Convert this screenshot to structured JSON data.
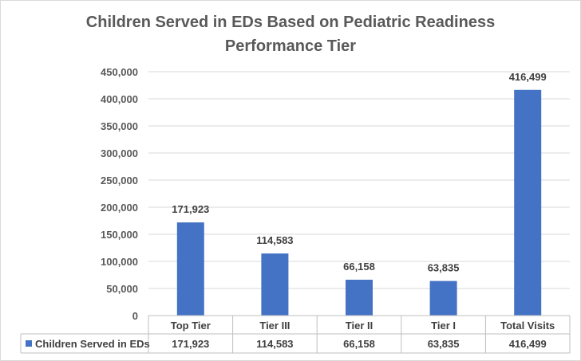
{
  "chart_data": {
    "type": "bar",
    "title_line1": "Children Served in EDs Based on Pediatric Readiness",
    "title_line2": "Performance Tier",
    "categories": [
      "Top Tier",
      "Tier III",
      "Tier II",
      "Tier I",
      "Total Visits"
    ],
    "series": [
      {
        "name": "Children Served in EDs",
        "values": [
          171923,
          114583,
          66158,
          63835,
          416499
        ],
        "value_labels": [
          "171,923",
          "114,583",
          "66,158",
          "63,835",
          "416,499"
        ]
      }
    ],
    "yticks": [
      "0",
      "50,000",
      "100,000",
      "150,000",
      "200,000",
      "250,000",
      "300,000",
      "350,000",
      "400,000",
      "450,000"
    ],
    "ylim": [
      0,
      450000
    ],
    "grid": true,
    "legend": "data-table",
    "bar_color": "#4472c4",
    "grid_color": "#d9d9d9"
  }
}
